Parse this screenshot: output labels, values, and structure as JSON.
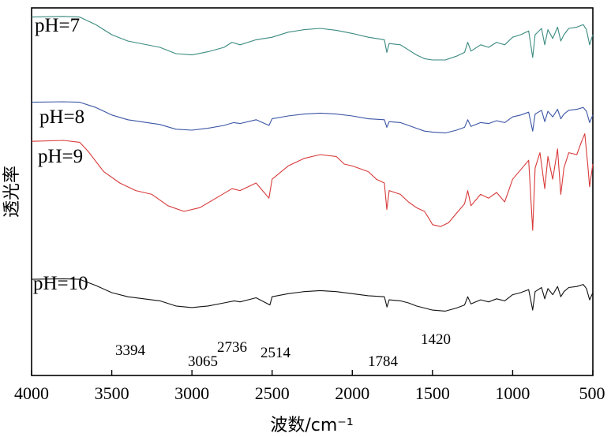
{
  "chart_data": {
    "type": "line",
    "xlabel": "波数/cm⁻¹",
    "ylabel": "透光率",
    "xlim": [
      4000,
      500
    ],
    "x_reversed": true,
    "x_ticks": [
      "4000",
      "3500",
      "3000",
      "2500",
      "2000",
      "1500",
      "1000",
      "500"
    ],
    "y_ticks_shown": false,
    "grid": false,
    "series": [
      {
        "name": "pH=7",
        "color": "#3a8a80",
        "points": [
          [
            4000,
            0.94
          ],
          [
            3800,
            0.945
          ],
          [
            3700,
            0.94
          ],
          [
            3600,
            0.88
          ],
          [
            3500,
            0.8
          ],
          [
            3400,
            0.75
          ],
          [
            3300,
            0.725
          ],
          [
            3200,
            0.7
          ],
          [
            3100,
            0.65
          ],
          [
            3000,
            0.64
          ],
          [
            2900,
            0.665
          ],
          [
            2800,
            0.7
          ],
          [
            2750,
            0.74
          ],
          [
            2700,
            0.72
          ],
          [
            2600,
            0.76
          ],
          [
            2500,
            0.78
          ],
          [
            2400,
            0.82
          ],
          [
            2300,
            0.84
          ],
          [
            2200,
            0.85
          ],
          [
            2100,
            0.835
          ],
          [
            2000,
            0.81
          ],
          [
            1900,
            0.78
          ],
          [
            1800,
            0.76
          ],
          [
            1785,
            0.66
          ],
          [
            1770,
            0.73
          ],
          [
            1700,
            0.72
          ],
          [
            1650,
            0.68
          ],
          [
            1600,
            0.64
          ],
          [
            1550,
            0.61
          ],
          [
            1500,
            0.6
          ],
          [
            1420,
            0.6
          ],
          [
            1350,
            0.63
          ],
          [
            1300,
            0.66
          ],
          [
            1280,
            0.74
          ],
          [
            1260,
            0.67
          ],
          [
            1200,
            0.72
          ],
          [
            1150,
            0.7
          ],
          [
            1100,
            0.74
          ],
          [
            1050,
            0.72
          ],
          [
            1000,
            0.78
          ],
          [
            950,
            0.8
          ],
          [
            900,
            0.83
          ],
          [
            875,
            0.62
          ],
          [
            860,
            0.8
          ],
          [
            820,
            0.85
          ],
          [
            800,
            0.72
          ],
          [
            780,
            0.84
          ],
          [
            750,
            0.77
          ],
          [
            720,
            0.86
          ],
          [
            700,
            0.75
          ],
          [
            680,
            0.8
          ],
          [
            650,
            0.85
          ],
          [
            600,
            0.86
          ],
          [
            560,
            0.88
          ],
          [
            540,
            0.84
          ],
          [
            520,
            0.72
          ],
          [
            500,
            0.8
          ]
        ]
      },
      {
        "name": "pH=8",
        "color": "#3b55a5",
        "points": [
          [
            4000,
            0.945
          ],
          [
            3800,
            0.95
          ],
          [
            3700,
            0.945
          ],
          [
            3600,
            0.89
          ],
          [
            3500,
            0.81
          ],
          [
            3400,
            0.76
          ],
          [
            3300,
            0.735
          ],
          [
            3200,
            0.71
          ],
          [
            3100,
            0.66
          ],
          [
            3000,
            0.65
          ],
          [
            2900,
            0.67
          ],
          [
            2800,
            0.7
          ],
          [
            2740,
            0.73
          ],
          [
            2700,
            0.72
          ],
          [
            2600,
            0.76
          ],
          [
            2520,
            0.7
          ],
          [
            2500,
            0.77
          ],
          [
            2400,
            0.8
          ],
          [
            2300,
            0.82
          ],
          [
            2200,
            0.83
          ],
          [
            2100,
            0.82
          ],
          [
            2000,
            0.8
          ],
          [
            1900,
            0.77
          ],
          [
            1800,
            0.76
          ],
          [
            1785,
            0.68
          ],
          [
            1770,
            0.74
          ],
          [
            1700,
            0.73
          ],
          [
            1650,
            0.7
          ],
          [
            1600,
            0.67
          ],
          [
            1550,
            0.64
          ],
          [
            1500,
            0.63
          ],
          [
            1420,
            0.62
          ],
          [
            1350,
            0.65
          ],
          [
            1300,
            0.68
          ],
          [
            1280,
            0.76
          ],
          [
            1260,
            0.69
          ],
          [
            1200,
            0.73
          ],
          [
            1150,
            0.72
          ],
          [
            1100,
            0.75
          ],
          [
            1050,
            0.73
          ],
          [
            1000,
            0.79
          ],
          [
            950,
            0.81
          ],
          [
            900,
            0.84
          ],
          [
            875,
            0.64
          ],
          [
            860,
            0.82
          ],
          [
            820,
            0.86
          ],
          [
            800,
            0.74
          ],
          [
            780,
            0.85
          ],
          [
            750,
            0.79
          ],
          [
            720,
            0.87
          ],
          [
            700,
            0.77
          ],
          [
            680,
            0.82
          ],
          [
            650,
            0.86
          ],
          [
            600,
            0.87
          ],
          [
            560,
            0.89
          ],
          [
            540,
            0.85
          ],
          [
            520,
            0.73
          ],
          [
            500,
            0.81
          ]
        ]
      },
      {
        "name": "pH=9",
        "color": "#d83a3a",
        "points": [
          [
            4000,
            0.92
          ],
          [
            3800,
            0.925
          ],
          [
            3700,
            0.915
          ],
          [
            3650,
            0.87
          ],
          [
            3550,
            0.76
          ],
          [
            3450,
            0.7
          ],
          [
            3350,
            0.66
          ],
          [
            3250,
            0.64
          ],
          [
            3150,
            0.58
          ],
          [
            3050,
            0.55
          ],
          [
            2950,
            0.57
          ],
          [
            2850,
            0.62
          ],
          [
            2750,
            0.67
          ],
          [
            2700,
            0.66
          ],
          [
            2600,
            0.7
          ],
          [
            2520,
            0.62
          ],
          [
            2500,
            0.72
          ],
          [
            2400,
            0.79
          ],
          [
            2300,
            0.83
          ],
          [
            2200,
            0.85
          ],
          [
            2100,
            0.84
          ],
          [
            2050,
            0.8
          ],
          [
            2000,
            0.79
          ],
          [
            1900,
            0.76
          ],
          [
            1850,
            0.72
          ],
          [
            1800,
            0.7
          ],
          [
            1785,
            0.56
          ],
          [
            1770,
            0.66
          ],
          [
            1700,
            0.64
          ],
          [
            1650,
            0.6
          ],
          [
            1600,
            0.57
          ],
          [
            1550,
            0.55
          ],
          [
            1520,
            0.51
          ],
          [
            1500,
            0.48
          ],
          [
            1450,
            0.47
          ],
          [
            1400,
            0.49
          ],
          [
            1350,
            0.54
          ],
          [
            1300,
            0.59
          ],
          [
            1280,
            0.66
          ],
          [
            1260,
            0.58
          ],
          [
            1200,
            0.64
          ],
          [
            1150,
            0.62
          ],
          [
            1100,
            0.65
          ],
          [
            1050,
            0.6
          ],
          [
            1000,
            0.72
          ],
          [
            950,
            0.77
          ],
          [
            900,
            0.82
          ],
          [
            875,
            0.45
          ],
          [
            860,
            0.78
          ],
          [
            830,
            0.86
          ],
          [
            800,
            0.67
          ],
          [
            780,
            0.84
          ],
          [
            750,
            0.72
          ],
          [
            720,
            0.88
          ],
          [
            700,
            0.64
          ],
          [
            680,
            0.78
          ],
          [
            650,
            0.86
          ],
          [
            600,
            0.85
          ],
          [
            570,
            0.92
          ],
          [
            550,
            0.96
          ],
          [
            530,
            0.78
          ],
          [
            520,
            0.68
          ],
          [
            500,
            0.8
          ]
        ]
      },
      {
        "name": "pH=10",
        "color": "#111111",
        "points": [
          [
            4000,
            0.93
          ],
          [
            3800,
            0.935
          ],
          [
            3700,
            0.93
          ],
          [
            3600,
            0.87
          ],
          [
            3500,
            0.8
          ],
          [
            3400,
            0.76
          ],
          [
            3300,
            0.74
          ],
          [
            3200,
            0.72
          ],
          [
            3100,
            0.67
          ],
          [
            3000,
            0.655
          ],
          [
            2900,
            0.67
          ],
          [
            2800,
            0.7
          ],
          [
            2736,
            0.72
          ],
          [
            2700,
            0.71
          ],
          [
            2600,
            0.75
          ],
          [
            2514,
            0.68
          ],
          [
            2500,
            0.76
          ],
          [
            2400,
            0.79
          ],
          [
            2300,
            0.81
          ],
          [
            2200,
            0.82
          ],
          [
            2100,
            0.81
          ],
          [
            2000,
            0.79
          ],
          [
            1900,
            0.77
          ],
          [
            1800,
            0.76
          ],
          [
            1784,
            0.66
          ],
          [
            1770,
            0.73
          ],
          [
            1700,
            0.72
          ],
          [
            1650,
            0.7
          ],
          [
            1600,
            0.67
          ],
          [
            1550,
            0.65
          ],
          [
            1500,
            0.63
          ],
          [
            1420,
            0.62
          ],
          [
            1350,
            0.65
          ],
          [
            1300,
            0.68
          ],
          [
            1280,
            0.76
          ],
          [
            1260,
            0.69
          ],
          [
            1200,
            0.73
          ],
          [
            1150,
            0.71
          ],
          [
            1100,
            0.74
          ],
          [
            1050,
            0.72
          ],
          [
            1000,
            0.78
          ],
          [
            950,
            0.8
          ],
          [
            900,
            0.83
          ],
          [
            875,
            0.63
          ],
          [
            860,
            0.81
          ],
          [
            820,
            0.85
          ],
          [
            800,
            0.74
          ],
          [
            780,
            0.84
          ],
          [
            750,
            0.78
          ],
          [
            720,
            0.86
          ],
          [
            700,
            0.76
          ],
          [
            680,
            0.81
          ],
          [
            650,
            0.85
          ],
          [
            600,
            0.86
          ],
          [
            560,
            0.88
          ],
          [
            540,
            0.84
          ],
          [
            520,
            0.73
          ],
          [
            500,
            0.8
          ]
        ]
      }
    ],
    "annotations": [
      "3394",
      "3065",
      "2736",
      "2514",
      "1784",
      "1420"
    ]
  }
}
